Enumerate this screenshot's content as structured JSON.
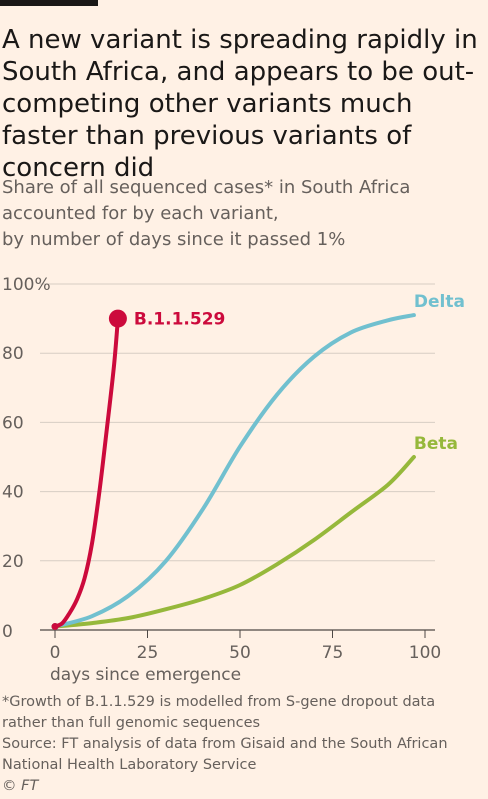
{
  "title": "A new variant is spreading rapidly in South Africa, and appears to be out-competing other variants much faster than previous variants of concern did",
  "subtitle_lines": [
    "Share of all sequenced cases* in South Africa",
    "accounted for by each variant,",
    "by number of days since it passed 1%"
  ],
  "footnote_lines": [
    "*Growth of B.1.1.529 is modelled from S-gene dropout data",
    "rather than full genomic sequences"
  ],
  "source_lines": [
    "Source: FT analysis of data from Gisaid and the South African",
    "National Health Laboratory Service"
  ],
  "credit": "© FT",
  "chart_data": {
    "type": "line",
    "xlabel": "days since emergence",
    "ylabel": "",
    "xlim": [
      0,
      100
    ],
    "ylim": [
      0,
      100
    ],
    "x_ticks": [
      0,
      25,
      50,
      75,
      100
    ],
    "y_ticks": [
      0,
      20,
      40,
      60,
      80,
      100
    ],
    "y_tick_labels": [
      "0",
      "20",
      "40",
      "60",
      "80",
      "100%"
    ],
    "grid": true,
    "series": [
      {
        "name": "B.1.1.529",
        "color": "#cc0a3c",
        "end_marker": true,
        "points": [
          [
            0,
            1
          ],
          [
            2,
            2
          ],
          [
            4,
            5
          ],
          [
            6,
            9
          ],
          [
            8,
            15
          ],
          [
            10,
            25
          ],
          [
            12,
            40
          ],
          [
            14,
            58
          ],
          [
            16,
            77
          ],
          [
            17,
            90
          ]
        ]
      },
      {
        "name": "Delta",
        "color": "#71c0cf",
        "end_marker": false,
        "points": [
          [
            0,
            1
          ],
          [
            10,
            4
          ],
          [
            20,
            10
          ],
          [
            30,
            20
          ],
          [
            40,
            35
          ],
          [
            50,
            53
          ],
          [
            60,
            68
          ],
          [
            70,
            79
          ],
          [
            80,
            86
          ],
          [
            90,
            89.5
          ],
          [
            97,
            91
          ]
        ]
      },
      {
        "name": "Beta",
        "color": "#96b83b",
        "end_marker": false,
        "points": [
          [
            0,
            1
          ],
          [
            10,
            2
          ],
          [
            20,
            3.5
          ],
          [
            30,
            6
          ],
          [
            40,
            9
          ],
          [
            50,
            13
          ],
          [
            60,
            19
          ],
          [
            70,
            26
          ],
          [
            80,
            34
          ],
          [
            90,
            42
          ],
          [
            97,
            50
          ]
        ]
      }
    ]
  }
}
